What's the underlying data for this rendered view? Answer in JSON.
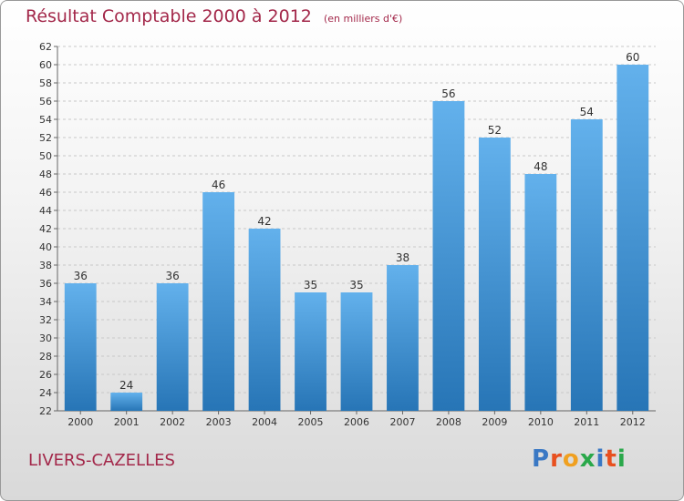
{
  "header": {
    "title": "Résultat Comptable 2000 à 2012",
    "subtitle": "(en milliers d'€)"
  },
  "footer": {
    "town": "LIVERS-CAZELLES",
    "logo_text": "Proxiti"
  },
  "colors": {
    "title": "#a3284a",
    "bar_top": "#63b1ec",
    "bar_bottom": "#2775b6",
    "logo": [
      "#3a78c4",
      "#e8501f",
      "#f0a020",
      "#2aa84a",
      "#3a78c4",
      "#e8501f",
      "#2aa84a"
    ]
  },
  "chart_data": {
    "type": "bar",
    "title": "Résultat Comptable 2000 à 2012",
    "xlabel": "",
    "ylabel": "",
    "ylim": [
      22,
      62
    ],
    "ytick_step": 2,
    "grid": true,
    "categories": [
      "2000",
      "2001",
      "2002",
      "2003",
      "2004",
      "2005",
      "2006",
      "2007",
      "2008",
      "2009",
      "2010",
      "2011",
      "2012"
    ],
    "values": [
      36,
      24,
      36,
      46,
      42,
      35,
      35,
      38,
      56,
      52,
      48,
      54,
      60
    ]
  }
}
